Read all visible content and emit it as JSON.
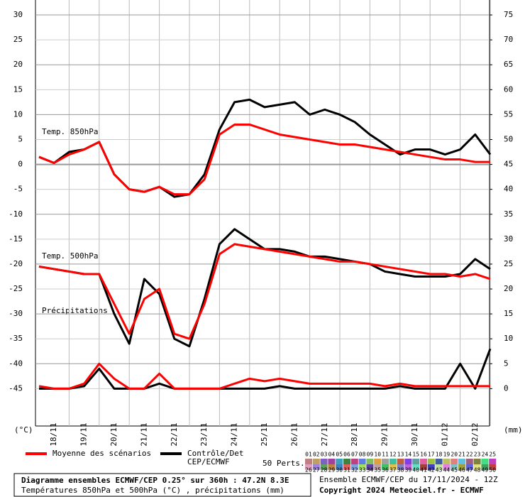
{
  "chart_data": {
    "type": "line",
    "categories": [
      null,
      "18/11",
      null,
      "19/11",
      null,
      "20/11",
      null,
      "21/11",
      null,
      "22/11",
      null,
      "23/11",
      null,
      "24/11",
      null,
      "25/11",
      null,
      "26/11",
      null,
      "27/11",
      null,
      "28/11",
      null,
      "29/11",
      null,
      "30/11",
      null,
      "01/12",
      null,
      "02/12",
      null
    ],
    "ylabel": "(°C)",
    "y2label": "(mm)",
    "ylim": [
      -52.5,
      33
    ],
    "yticks": [
      30,
      25,
      20,
      15,
      10,
      5,
      0,
      -5,
      -10,
      -15,
      -20,
      -25,
      -30,
      -35,
      -40,
      -45
    ],
    "y2lim": [
      -7.5,
      78
    ],
    "y2ticks": [
      75,
      70,
      65,
      60,
      55,
      50,
      45,
      40,
      35,
      30,
      25,
      20,
      15,
      10,
      5,
      0
    ],
    "mean_name": "Moyenne des scénarios",
    "mean_color": "#ff0000",
    "control_name": [
      "Contrôle/Det",
      "CEP/ECMWF"
    ],
    "control_color": "#000000",
    "panels": [
      {
        "label": "Temp. 850hPa",
        "mean": [
          1.5,
          0.3,
          2,
          3,
          4.5,
          -2,
          -5,
          -5.5,
          -4.5,
          -6,
          -6,
          -3,
          6,
          8,
          8,
          7,
          6,
          5.5,
          5,
          4.5,
          4,
          4,
          3.5,
          3,
          2.5,
          2,
          1.5,
          1,
          1,
          0.5,
          0.5
        ],
        "control": [
          1.5,
          0.3,
          2.5,
          3,
          4.5,
          -2,
          -5,
          -5.5,
          -4.5,
          -6.5,
          -6,
          -2,
          7,
          12.5,
          13,
          11.5,
          12,
          12.5,
          10,
          11,
          10,
          8.5,
          6,
          4,
          2,
          3,
          3,
          2,
          3,
          6,
          2
        ]
      },
      {
        "label": "Temp. 500hPa",
        "mean": [
          -20.5,
          -21,
          -21.5,
          -22,
          -22,
          -28,
          -34,
          -27,
          -25,
          -34,
          -35,
          -28,
          -18,
          -16,
          -16.5,
          -17,
          -17.5,
          -18,
          -18.5,
          -19,
          -19.5,
          -19.5,
          -20,
          -20.5,
          -21,
          -21.5,
          -22,
          -22,
          -22.5,
          -22,
          -23
        ],
        "control": [
          -20.5,
          -21,
          -21.5,
          -22,
          -22,
          -30,
          -36,
          -23,
          -26,
          -35,
          -36.5,
          -27,
          -16,
          -13,
          -15,
          -17,
          -17,
          -17.5,
          -18.5,
          -18.5,
          -19,
          -19.5,
          -20,
          -21.5,
          -22,
          -22.5,
          -22.5,
          -22.5,
          -22,
          -19,
          -21
        ]
      },
      {
        "label": "Précipitations",
        "axis": "y2",
        "mean": [
          0.5,
          0,
          0,
          1,
          5,
          2,
          0,
          0,
          3,
          0,
          0,
          0,
          0,
          1,
          2,
          1.5,
          2,
          1.5,
          1,
          1,
          1,
          1,
          1,
          0.5,
          1,
          0.5,
          0.5,
          0.5,
          0.5,
          0.5,
          0.5
        ],
        "control": [
          0,
          0,
          0,
          0.5,
          4,
          0,
          0,
          0,
          1,
          0,
          0,
          0,
          0,
          0,
          0,
          0,
          0.5,
          0,
          0,
          0,
          0,
          0,
          0,
          0,
          0.5,
          0,
          0,
          0,
          5,
          0,
          8
        ]
      }
    ],
    "perts_title": "50 Perts.",
    "perts": [
      "01",
      "02",
      "03",
      "04",
      "05",
      "06",
      "07",
      "08",
      "09",
      "10",
      "11",
      "12",
      "13",
      "14",
      "15",
      "16",
      "17",
      "18",
      "19",
      "20",
      "21",
      "22",
      "23",
      "24",
      "25",
      "26",
      "27",
      "28",
      "29",
      "30",
      "31",
      "32",
      "33",
      "34",
      "35",
      "36",
      "37",
      "38",
      "39",
      "40",
      "41",
      "42",
      "43",
      "44",
      "45",
      "46",
      "47",
      "48",
      "49",
      "50"
    ],
    "pert_colors": [
      "#c08080",
      "#c0a060",
      "#8060c0",
      "#a040a0",
      "#40a0c0",
      "#408040",
      "#c04080",
      "#6080e0",
      "#80c060",
      "#e0a040",
      "#a0a0a0",
      "#40c0a0",
      "#c06040",
      "#8040e0",
      "#60a0a0",
      "#e060a0",
      "#a0c040",
      "#4060a0",
      "#c0c060",
      "#e08080",
      "#60c0e0",
      "#a06080",
      "#808040",
      "#40e080",
      "#c040c0",
      "#e0a0c0",
      "#a080e0",
      "#60a060",
      "#c08040",
      "#4080c0",
      "#e06060",
      "#80a0e0",
      "#a0e060",
      "#6040a0",
      "#c0a0a0",
      "#40c060",
      "#e0c040",
      "#8080c0",
      "#c060e0",
      "#60e0c0",
      "#a04040",
      "#4040c0",
      "#c0e0a0",
      "#e080e0",
      "#80c0c0",
      "#a0a040",
      "#6060e0",
      "#e0e080",
      "#40a060",
      "#c04040"
    ],
    "info": [
      "Diagramme ensembles ECMWF/CEP 0.25° sur 360h : 47.2N 8.3E",
      "Températures 850hPa et 500hPa (°C) , précipitations (mm)"
    ],
    "run": "Ensemble ECMWF/CEP du 17/11/2024 - 12Z",
    "copyright": "Copyright 2024 Meteociel.fr - ECMWF"
  }
}
